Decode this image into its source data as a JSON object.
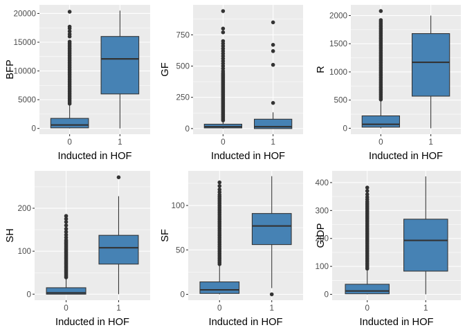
{
  "chart_data": [
    {
      "type": "boxplot",
      "xlabel": "Inducted in HOF",
      "ylabel": "BFP",
      "categories": [
        "0",
        "1"
      ],
      "ylim": [
        -1000,
        21500
      ],
      "yticks": [
        0,
        5000,
        10000,
        15000,
        20000
      ],
      "ytick_labels": [
        "0",
        "5000",
        "10000",
        "15000",
        "20000"
      ],
      "fill_color": "#4682B4",
      "boxes": [
        {
          "category": "0",
          "lower_whisker": 0,
          "q1": 100,
          "median": 600,
          "q3": 1750,
          "upper_whisker": 4200,
          "outliers": [
            4300,
            4600,
            4900,
            5200,
            5500,
            5800,
            6100,
            6400,
            6700,
            7000,
            7300,
            7600,
            7900,
            8200,
            8500,
            8800,
            9100,
            9400,
            9700,
            10000,
            10300,
            10600,
            10900,
            11200,
            11500,
            11800,
            12100,
            12400,
            12700,
            13000,
            13300,
            13600,
            13900,
            14200,
            14500,
            14800,
            15100,
            16000,
            16400,
            16900,
            17400,
            17700,
            20300
          ]
        },
        {
          "category": "1",
          "lower_whisker": 0,
          "q1": 6000,
          "median": 12100,
          "q3": 16000,
          "upper_whisker": 20500,
          "outliers": []
        }
      ]
    },
    {
      "type": "boxplot",
      "xlabel": "Inducted in HOF",
      "ylabel": "GF",
      "categories": [
        "0",
        "1"
      ],
      "ylim": [
        -45,
        990
      ],
      "yticks": [
        0,
        250,
        500,
        750
      ],
      "ytick_labels": [
        "0",
        "250",
        "500",
        "750"
      ],
      "fill_color": "#4682B4",
      "boxes": [
        {
          "category": "0",
          "lower_whisker": 0,
          "q1": 5,
          "median": 15,
          "q3": 35,
          "upper_whisker": 60,
          "outliers": [
            65,
            75,
            85,
            95,
            105,
            115,
            125,
            135,
            145,
            155,
            165,
            175,
            185,
            195,
            205,
            215,
            225,
            235,
            245,
            255,
            265,
            275,
            285,
            295,
            305,
            315,
            325,
            335,
            345,
            355,
            365,
            375,
            385,
            395,
            405,
            415,
            425,
            435,
            445,
            460,
            480,
            500,
            520,
            540,
            560,
            580,
            600,
            620,
            640,
            660,
            680,
            700,
            770,
            800,
            940
          ]
        },
        {
          "category": "1",
          "lower_whisker": 0,
          "q1": 0,
          "median": 15,
          "q3": 75,
          "upper_whisker": 130,
          "outliers": [
            205,
            510,
            620,
            670,
            850
          ]
        }
      ]
    },
    {
      "type": "boxplot",
      "xlabel": "Inducted in HOF",
      "ylabel": "R",
      "categories": [
        "0",
        "1"
      ],
      "ylim": [
        -105,
        2190
      ],
      "yticks": [
        0,
        500,
        1000,
        1500,
        2000
      ],
      "ytick_labels": [
        "0",
        "500",
        "1000",
        "1500",
        "2000"
      ],
      "fill_color": "#4682B4",
      "boxes": [
        {
          "category": "0",
          "lower_whisker": 0,
          "q1": 20,
          "median": 70,
          "q3": 220,
          "upper_whisker": 500,
          "outliers": [
            510,
            540,
            570,
            600,
            630,
            660,
            690,
            720,
            750,
            780,
            810,
            840,
            870,
            900,
            930,
            960,
            990,
            1020,
            1050,
            1080,
            1110,
            1140,
            1170,
            1200,
            1230,
            1260,
            1290,
            1320,
            1350,
            1380,
            1410,
            1440,
            1470,
            1500,
            1530,
            1560,
            1590,
            1620,
            1650,
            1680,
            1710,
            1740,
            1770,
            1800,
            1830,
            1860,
            1890,
            1920,
            2080
          ]
        },
        {
          "category": "1",
          "lower_whisker": 0,
          "q1": 570,
          "median": 1170,
          "q3": 1680,
          "upper_whisker": 2000,
          "outliers": []
        }
      ]
    },
    {
      "type": "boxplot",
      "xlabel": "Inducted in HOF",
      "ylabel": "SH",
      "categories": [
        "0",
        "1"
      ],
      "ylim": [
        -14,
        287
      ],
      "yticks": [
        0,
        100,
        200
      ],
      "ytick_labels": [
        "0",
        "100",
        "200"
      ],
      "fill_color": "#4682B4",
      "boxes": [
        {
          "category": "0",
          "lower_whisker": 0,
          "q1": 0,
          "median": 3,
          "q3": 15,
          "upper_whisker": 37,
          "outliers": [
            39,
            42,
            45,
            48,
            51,
            54,
            57,
            60,
            63,
            66,
            69,
            72,
            75,
            78,
            81,
            84,
            87,
            90,
            93,
            96,
            99,
            102,
            105,
            108,
            111,
            114,
            117,
            120,
            123,
            126,
            132,
            138,
            145,
            152,
            160,
            168,
            175,
            182
          ]
        },
        {
          "category": "1",
          "lower_whisker": 0,
          "q1": 70,
          "median": 108,
          "q3": 137,
          "upper_whisker": 228,
          "outliers": [
            272
          ]
        }
      ]
    },
    {
      "type": "boxplot",
      "xlabel": "Inducted in HOF",
      "ylabel": "SF",
      "categories": [
        "0",
        "1"
      ],
      "ylim": [
        -6.6,
        139
      ],
      "yticks": [
        0,
        50,
        100
      ],
      "ytick_labels": [
        "0",
        "50",
        "100"
      ],
      "fill_color": "#4682B4",
      "boxes": [
        {
          "category": "0",
          "lower_whisker": 0,
          "q1": 1,
          "median": 5,
          "q3": 14,
          "upper_whisker": 33,
          "outliers": [
            34,
            36,
            38,
            40,
            42,
            44,
            46,
            48,
            50,
            52,
            54,
            56,
            58,
            60,
            62,
            64,
            66,
            68,
            70,
            72,
            74,
            76,
            78,
            80,
            82,
            84,
            86,
            88,
            90,
            92,
            94,
            96,
            98,
            100,
            102,
            104,
            106,
            108,
            110,
            112,
            115,
            118,
            122,
            126
          ]
        },
        {
          "category": "1",
          "lower_whisker": 7,
          "q1": 56,
          "median": 77,
          "q3": 91,
          "upper_whisker": 133,
          "outliers": [
            0
          ]
        }
      ]
    },
    {
      "type": "boxplot",
      "xlabel": "Inducted in HOF",
      "ylabel": "GIDP",
      "categories": [
        "0",
        "1"
      ],
      "ylim": [
        -21,
        442
      ],
      "yticks": [
        0,
        100,
        200,
        300,
        400
      ],
      "ytick_labels": [
        "0",
        "100",
        "200",
        "300",
        "400"
      ],
      "fill_color": "#4682B4",
      "boxes": [
        {
          "category": "0",
          "lower_whisker": 0,
          "q1": 2,
          "median": 12,
          "q3": 36,
          "upper_whisker": 88,
          "outliers": [
            92,
            98,
            104,
            110,
            116,
            122,
            128,
            134,
            140,
            146,
            152,
            158,
            164,
            170,
            176,
            182,
            188,
            194,
            200,
            206,
            212,
            218,
            224,
            230,
            236,
            242,
            248,
            254,
            260,
            266,
            272,
            278,
            284,
            290,
            296,
            302,
            308,
            314,
            320,
            326,
            332,
            340,
            348,
            358,
            370,
            382
          ]
        },
        {
          "category": "1",
          "lower_whisker": 0,
          "q1": 83,
          "median": 193,
          "q3": 269,
          "upper_whisker": 422,
          "outliers": []
        }
      ]
    }
  ]
}
